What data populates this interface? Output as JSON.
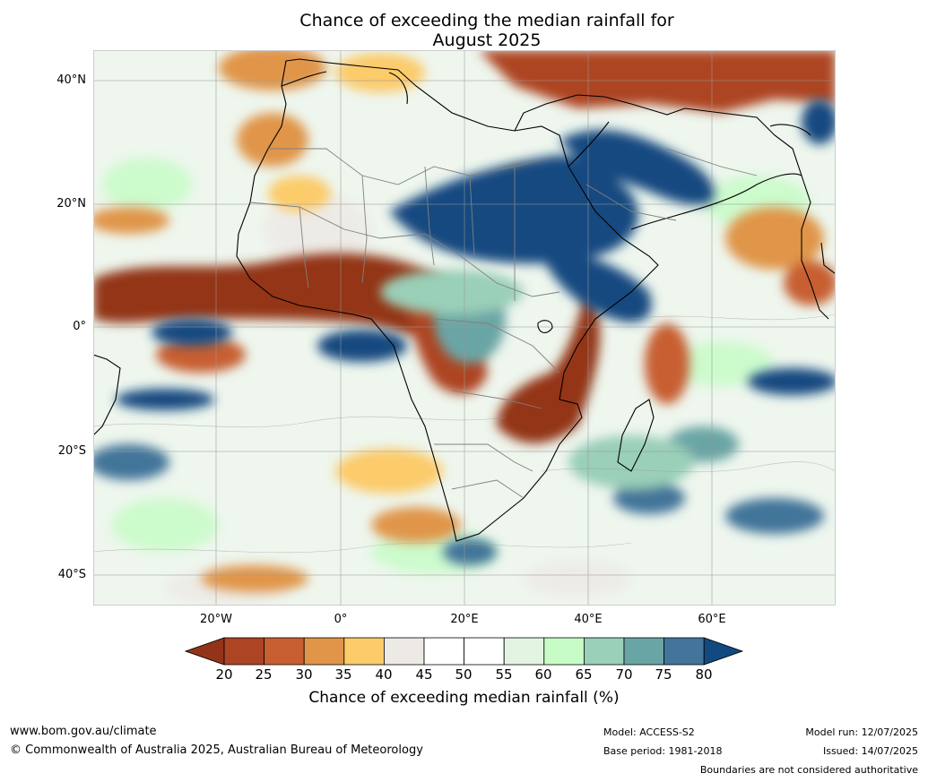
{
  "title": {
    "line1": "Chance of exceeding the median rainfall for",
    "line2": "August 2025"
  },
  "map": {
    "lat_labels": [
      "40°N",
      "20°N",
      "0°",
      "20°S",
      "40°S"
    ],
    "lon_labels": [
      "20°W",
      "0°",
      "20°E",
      "40°E",
      "60°E"
    ]
  },
  "colorbar": {
    "ticks": [
      "20",
      "25",
      "30",
      "35",
      "40",
      "45",
      "50",
      "55",
      "60",
      "65",
      "70",
      "75",
      "80"
    ],
    "colors": [
      "#933418",
      "#ad4424",
      "#c75f32",
      "#e09549",
      "#fccb6a",
      "#edeae6",
      "#ffffff",
      "#ffffff",
      "#e3f4e3",
      "#c7fcc7",
      "#9acfb8",
      "#6aa5a5",
      "#43759a",
      "#124a80"
    ],
    "label": "Chance of exceeding median rainfall (%)"
  },
  "footer": {
    "url": "www.bom.gov.au/climate",
    "copyright": "© Commonwealth of Australia 2025, Australian Bureau of Meteorology",
    "model": "Model: ACCESS-S2",
    "base_period": "Base period: 1981-2018",
    "model_run": "Model run: 12/07/2025",
    "issued": "Issued: 14/07/2025",
    "disclaimer": "Boundaries are not considered authoritative"
  }
}
